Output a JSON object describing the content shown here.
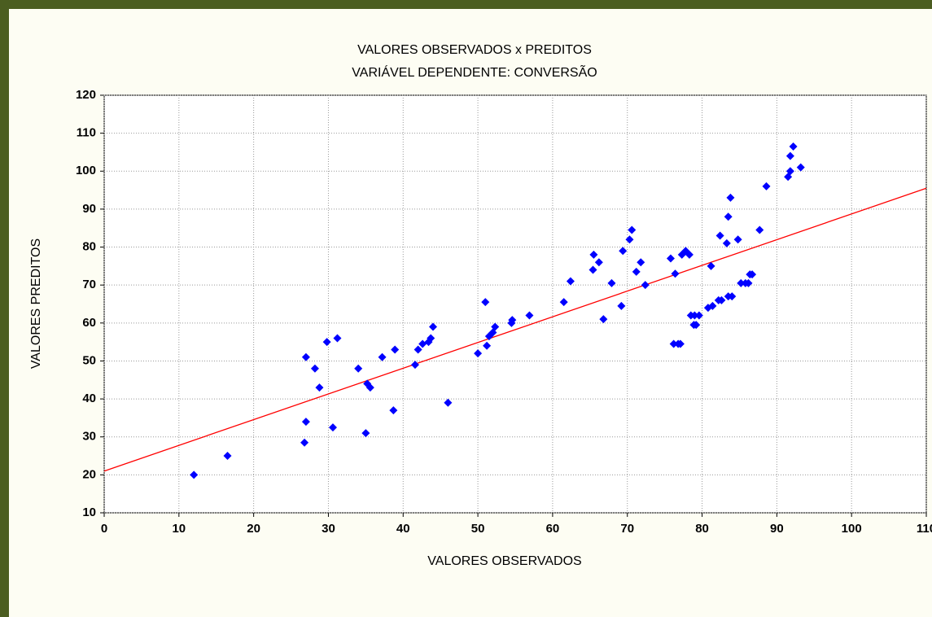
{
  "chart_data": {
    "type": "scatter",
    "title": "VALORES OBSERVADOS x PREDITOS",
    "subtitle": "VARIÁVEL DEPENDENTE: CONVERSÃO",
    "x_label": "VALORES OBSERVADOS",
    "y_label": "VALORES PREDITOS",
    "xlim": [
      0,
      110
    ],
    "ylim": [
      10,
      120
    ],
    "xticks": [
      0,
      10,
      20,
      30,
      40,
      50,
      60,
      70,
      80,
      90,
      100,
      110
    ],
    "yticks": [
      10,
      20,
      30,
      40,
      50,
      60,
      70,
      80,
      90,
      100,
      110,
      120
    ],
    "grid": true,
    "series": [
      {
        "color": "#0000ff",
        "x": [
          12,
          16.5,
          27,
          27,
          26.8,
          28.2,
          28.8,
          29.8,
          31.2,
          30.6,
          34,
          35,
          35.2,
          35.6,
          37.2,
          38.7,
          38.9,
          41.6,
          42,
          42.6,
          43.4,
          43.7,
          44,
          46,
          50,
          51,
          51.2,
          51.5,
          52,
          52.3,
          54.5,
          54.6,
          56.9,
          61.5,
          62.4,
          65.4,
          65.5,
          66.2,
          66.8,
          67.9,
          69.2,
          69.4,
          70.3,
          70.6,
          71.2,
          71.8,
          72.4,
          75.8,
          76.2,
          76.4,
          76.8,
          77.1,
          77.3,
          77.8,
          78.3,
          78.5,
          78.9,
          79,
          79.2,
          79.6,
          80.8,
          81.2,
          81.4,
          82.2,
          82.6,
          82.4,
          83.3,
          83.5,
          83.5,
          83.8,
          84,
          84.8,
          85.2,
          85.8,
          86.2,
          86.4,
          86.7,
          87.7,
          88.6,
          91.5,
          91.8,
          91.8,
          92.2,
          93.2
        ],
        "values": [
          20,
          25,
          51,
          34,
          28.5,
          48,
          43,
          55,
          56,
          32.5,
          48,
          31,
          44,
          43,
          51,
          37,
          53,
          49,
          53,
          54.5,
          55,
          56,
          59,
          39,
          52,
          65.5,
          54,
          56.5,
          57.5,
          59,
          60,
          60.8,
          62,
          65.5,
          71,
          74,
          78,
          76,
          61,
          70.5,
          64.5,
          79,
          82,
          84.5,
          73.5,
          76,
          70,
          77,
          54.5,
          73,
          54.5,
          54.5,
          78,
          79,
          78,
          62,
          59.5,
          62,
          59.5,
          62,
          64,
          75,
          64.5,
          66,
          66,
          83,
          81,
          88,
          67,
          93,
          67,
          82,
          70.5,
          70.5,
          70.5,
          72.8,
          72.8,
          84.5,
          96,
          98.5,
          104,
          100,
          106.5,
          101
        ]
      }
    ],
    "fit": {
      "color": "#ff0000",
      "x": [
        0,
        110
      ],
      "values": [
        21,
        95.5
      ]
    }
  }
}
